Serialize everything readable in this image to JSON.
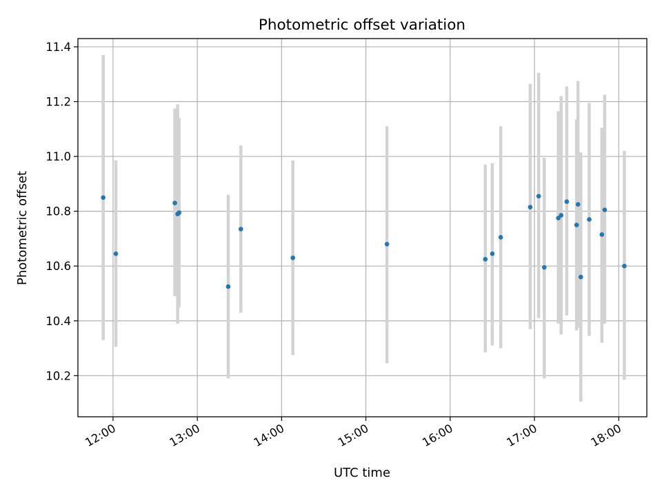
{
  "chart_data": {
    "type": "scatter",
    "title": "Photometric offset variation",
    "xlabel": "UTC time",
    "ylabel": "Photometric offset",
    "x_axis": "time",
    "xlim": [
      "11:35",
      "18:20"
    ],
    "ylim": [
      10.05,
      11.43
    ],
    "x_ticks": [
      "12:00",
      "13:00",
      "14:00",
      "15:00",
      "16:00",
      "17:00",
      "18:00"
    ],
    "y_ticks": [
      10.2,
      10.4,
      10.6,
      10.8,
      11.0,
      11.2,
      11.4
    ],
    "y_tick_labels": [
      "10.2",
      "10.4",
      "10.6",
      "10.8",
      "11.0",
      "11.2",
      "11.4"
    ],
    "grid": true,
    "point_color": "#1f77b4",
    "errorbar_color": "#d3d3d3",
    "points": [
      {
        "x": "11:53",
        "y": 10.85,
        "ylow": 10.33,
        "yhigh": 11.37
      },
      {
        "x": "12:02",
        "y": 10.645,
        "ylow": 10.305,
        "yhigh": 10.985
      },
      {
        "x": "12:44",
        "y": 10.83,
        "ylow": 10.49,
        "yhigh": 11.175
      },
      {
        "x": "12:46",
        "y": 10.79,
        "ylow": 10.39,
        "yhigh": 11.19
      },
      {
        "x": "12:47",
        "y": 10.795,
        "ylow": 10.45,
        "yhigh": 11.14
      },
      {
        "x": "13:22",
        "y": 10.525,
        "ylow": 10.19,
        "yhigh": 10.86
      },
      {
        "x": "13:31",
        "y": 10.735,
        "ylow": 10.43,
        "yhigh": 11.04
      },
      {
        "x": "14:08",
        "y": 10.63,
        "ylow": 10.275,
        "yhigh": 10.985
      },
      {
        "x": "15:15",
        "y": 10.68,
        "ylow": 10.245,
        "yhigh": 11.11
      },
      {
        "x": "16:25",
        "y": 10.625,
        "ylow": 10.285,
        "yhigh": 10.97
      },
      {
        "x": "16:30",
        "y": 10.645,
        "ylow": 10.31,
        "yhigh": 10.975
      },
      {
        "x": "16:36",
        "y": 10.705,
        "ylow": 10.3,
        "yhigh": 11.11
      },
      {
        "x": "16:57",
        "y": 10.815,
        "ylow": 10.37,
        "yhigh": 11.265
      },
      {
        "x": "17:03",
        "y": 10.855,
        "ylow": 10.41,
        "yhigh": 11.305
      },
      {
        "x": "17:07",
        "y": 10.595,
        "ylow": 10.19,
        "yhigh": 10.995
      },
      {
        "x": "17:17",
        "y": 10.775,
        "ylow": 10.39,
        "yhigh": 11.165
      },
      {
        "x": "17:19",
        "y": 10.785,
        "ylow": 10.35,
        "yhigh": 11.22
      },
      {
        "x": "17:23",
        "y": 10.835,
        "ylow": 10.42,
        "yhigh": 11.255
      },
      {
        "x": "17:30",
        "y": 10.75,
        "ylow": 10.365,
        "yhigh": 11.135
      },
      {
        "x": "17:31",
        "y": 10.825,
        "ylow": 10.375,
        "yhigh": 11.275
      },
      {
        "x": "17:33",
        "y": 10.56,
        "ylow": 10.105,
        "yhigh": 11.015
      },
      {
        "x": "17:39",
        "y": 10.77,
        "ylow": 10.345,
        "yhigh": 11.195
      },
      {
        "x": "17:48",
        "y": 10.715,
        "ylow": 10.32,
        "yhigh": 11.105
      },
      {
        "x": "17:50",
        "y": 10.805,
        "ylow": 10.39,
        "yhigh": 11.225
      },
      {
        "x": "18:04",
        "y": 10.6,
        "ylow": 10.185,
        "yhigh": 11.02
      }
    ]
  }
}
